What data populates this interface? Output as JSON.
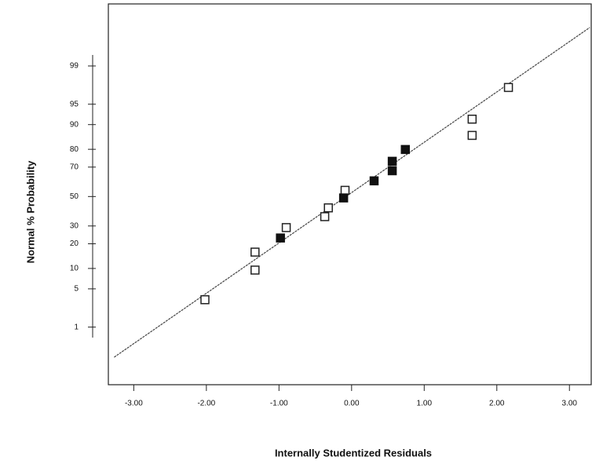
{
  "chart_data": {
    "type": "scatter",
    "y_scale": "probability",
    "xlabel": "Internally Studentized Residuals",
    "ylabel": "Normal % Probability",
    "xlim": [
      -3.35,
      3.3
    ],
    "ylim": [
      0.04,
      99.97
    ],
    "xticks": [
      {
        "value": -3,
        "label": "-3.00"
      },
      {
        "value": -2,
        "label": "-2.00"
      },
      {
        "value": -1,
        "label": "-1.00"
      },
      {
        "value": 0,
        "label": "0.00"
      },
      {
        "value": 1,
        "label": "1.00"
      },
      {
        "value": 2,
        "label": "2.00"
      },
      {
        "value": 3,
        "label": "3.00"
      }
    ],
    "yticks": [
      1,
      5,
      10,
      20,
      30,
      50,
      70,
      80,
      90,
      95,
      99
    ],
    "series": [
      {
        "color": "#222222",
        "filled": false,
        "x": [
          -2.02,
          -1.33,
          -1.33,
          -0.9,
          -0.37,
          -0.32,
          -0.09,
          1.66,
          1.66,
          2.16
        ],
        "values": [
          3.3,
          9.5,
          16.1,
          29,
          36,
          42,
          54.4,
          86.2,
          91.6,
          97.4
        ]
      },
      {
        "color": "#111111",
        "filled": true,
        "x": [
          -0.98,
          -0.11,
          0.31,
          0.56,
          0.56,
          0.74
        ],
        "values": [
          23,
          49,
          61,
          67.7,
          73.5,
          79.9
        ]
      }
    ],
    "fit_line": {
      "x": [
        -3.27,
        3.28
      ],
      "values": [
        0.21,
        99.87
      ],
      "color": "#444444"
    }
  }
}
